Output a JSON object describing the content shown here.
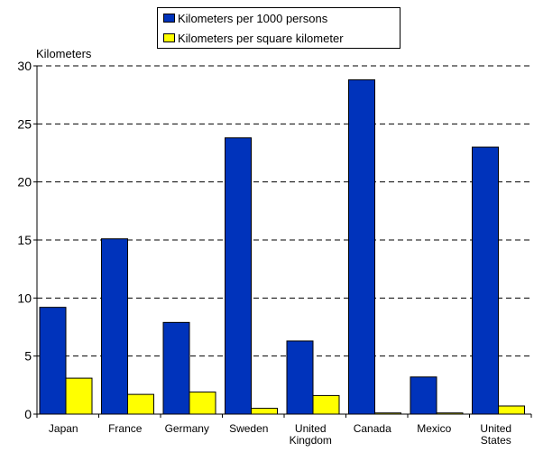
{
  "chart_data": {
    "type": "bar",
    "ylabel": "Kilometers",
    "ylim": [
      0,
      30
    ],
    "yticks": [
      0,
      5,
      10,
      15,
      20,
      25,
      30
    ],
    "grid": "dashed horizontal",
    "legend_position": "top",
    "categories": [
      [
        "Japan"
      ],
      [
        "France"
      ],
      [
        "Germany"
      ],
      [
        "Sweden"
      ],
      [
        "United",
        "Kingdom"
      ],
      [
        "Canada"
      ],
      [
        "Mexico"
      ],
      [
        "United",
        "States"
      ]
    ],
    "series": [
      {
        "name": "Kilometers per 1000 persons",
        "color": "#0033BB",
        "values": [
          9.2,
          15.1,
          7.9,
          23.8,
          6.3,
          28.8,
          3.2,
          23.0
        ]
      },
      {
        "name": "Kilometers per square kilometer",
        "color": "#FFFF00",
        "values": [
          3.1,
          1.7,
          1.9,
          0.5,
          1.6,
          0.1,
          0.1,
          0.7
        ]
      }
    ]
  }
}
